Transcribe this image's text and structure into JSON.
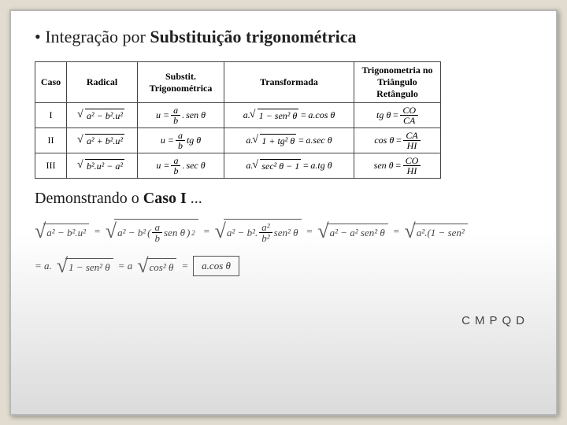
{
  "title_plain": "• Integração por ",
  "title_bold": "Substituição trigonométrica",
  "headers": [
    "Caso",
    "Radical",
    "Substit. Trigonométrica",
    "Transformada",
    "Trigonometria no Triângulo Retângulo"
  ],
  "rows": [
    {
      "caso": "I",
      "radA": "a",
      "radB": "b",
      "radSign": "−",
      "subst": "sen θ",
      "transf_in": "1 − sen² θ",
      "transf_res": "a.cos θ",
      "trig_fn": "tg θ",
      "trig_num": "CO",
      "trig_den": "CA"
    },
    {
      "caso": "II",
      "radA": "a",
      "radB": "b",
      "radSign": "+",
      "subst": "tg θ",
      "transf_in": "1 + tg² θ",
      "transf_res": "a.sec θ",
      "trig_fn": "cos θ",
      "trig_num": "CA",
      "trig_den": "HI"
    },
    {
      "caso": "III",
      "radA": "b",
      "radB": "a",
      "radSign": "−",
      "radLead": "b².u² − a²",
      "subst": "sec θ",
      "transf_in": "sec² θ − 1",
      "transf_res": "a.tg θ",
      "trig_fn": "sen θ",
      "trig_num": "CO",
      "trig_den": "HI"
    }
  ],
  "demo_plain": "Demonstrando o ",
  "demo_bold": "Caso I",
  "demo_tail": " ...",
  "eq1_step1": "a² − b².u²",
  "eq1_step2a": "a² − b²",
  "eq1_step2b_num": "a",
  "eq1_step2b_den": "b",
  "eq1_step2c": "sen θ",
  "eq1_step3a": "a² − b².",
  "eq1_step3b_num": "a²",
  "eq1_step3b_den": "b²",
  "eq1_step3c": "sen² θ",
  "eq1_step4": "a² − a² sen² θ",
  "eq1_step5": "a².(1 − sen²",
  "eq2_step1": "= a.",
  "eq2_step1b": "1 − sen² θ",
  "eq2_step2": " = a",
  "eq2_step2b": "cos² θ",
  "eq2_eq": " = ",
  "result_box": "a.cos θ",
  "cmpqd": "CMPQD"
}
